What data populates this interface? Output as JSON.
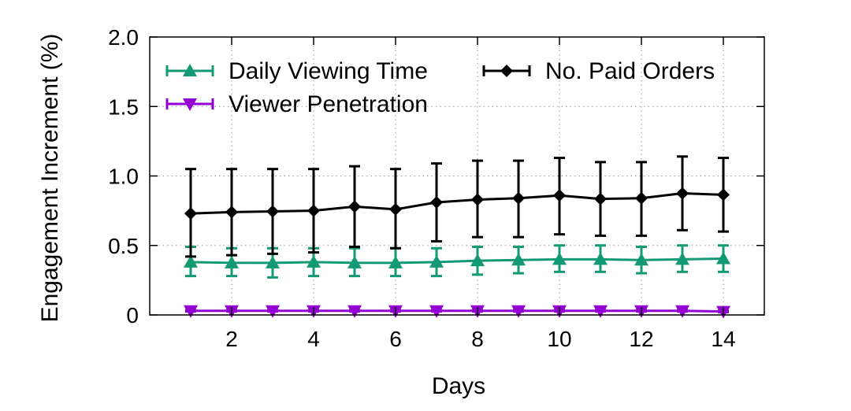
{
  "chart_data": {
    "type": "line",
    "xlabel": "Days",
    "ylabel": "Engagement Increment (%)",
    "xlim": [
      0,
      15
    ],
    "ylim": [
      0,
      2.0
    ],
    "xticks": [
      2,
      4,
      6,
      8,
      10,
      12,
      14
    ],
    "xtick_labels": [
      "2",
      "4",
      "6",
      "8",
      "10",
      "12",
      "14"
    ],
    "yticks": [
      0,
      0.5,
      1.0,
      1.5,
      2.0
    ],
    "ytick_labels": [
      "0",
      "0.5",
      "1.0",
      "1.5",
      "2.0"
    ],
    "grid": true,
    "legend_placement": "top",
    "x": [
      1,
      2,
      3,
      4,
      5,
      6,
      7,
      8,
      9,
      10,
      11,
      12,
      13,
      14
    ],
    "series": [
      {
        "name": "Daily Viewing Time",
        "color": "#139a74",
        "marker": "triangle-up",
        "values": [
          0.38,
          0.375,
          0.375,
          0.38,
          0.375,
          0.375,
          0.38,
          0.39,
          0.395,
          0.4,
          0.4,
          0.395,
          0.4,
          0.405
        ],
        "err_low": [
          0.28,
          0.28,
          0.27,
          0.28,
          0.28,
          0.28,
          0.28,
          0.29,
          0.3,
          0.31,
          0.31,
          0.3,
          0.31,
          0.31
        ],
        "err_high": [
          0.49,
          0.48,
          0.48,
          0.48,
          0.48,
          0.48,
          0.48,
          0.49,
          0.49,
          0.5,
          0.5,
          0.49,
          0.5,
          0.5
        ]
      },
      {
        "name": "No. Paid Orders",
        "color": "#000000",
        "marker": "diamond",
        "values": [
          0.73,
          0.74,
          0.745,
          0.75,
          0.78,
          0.76,
          0.81,
          0.83,
          0.84,
          0.86,
          0.835,
          0.84,
          0.875,
          0.865
        ],
        "err_low": [
          0.42,
          0.43,
          0.44,
          0.45,
          0.49,
          0.48,
          0.53,
          0.56,
          0.56,
          0.58,
          0.57,
          0.57,
          0.61,
          0.6
        ],
        "err_high": [
          1.05,
          1.05,
          1.05,
          1.05,
          1.07,
          1.05,
          1.09,
          1.11,
          1.11,
          1.13,
          1.1,
          1.1,
          1.14,
          1.13
        ]
      },
      {
        "name": "Viewer Penetration",
        "color": "#9400d3",
        "marker": "triangle-down",
        "values": [
          0.03,
          0.03,
          0.03,
          0.03,
          0.03,
          0.03,
          0.03,
          0.03,
          0.03,
          0.03,
          0.03,
          0.03,
          0.03,
          0.025
        ],
        "err_low": [
          0.025,
          0.025,
          0.025,
          0.025,
          0.025,
          0.025,
          0.025,
          0.025,
          0.025,
          0.025,
          0.025,
          0.025,
          0.025,
          0.02
        ],
        "err_high": [
          0.035,
          0.035,
          0.035,
          0.035,
          0.035,
          0.035,
          0.035,
          0.035,
          0.035,
          0.035,
          0.035,
          0.035,
          0.035,
          0.03
        ]
      }
    ]
  }
}
